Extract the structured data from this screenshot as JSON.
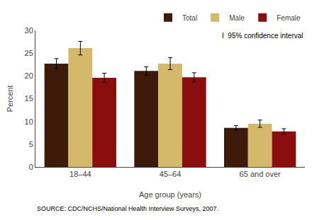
{
  "chart_data": {
    "type": "bar",
    "xlabel": "Age group (years)",
    "ylabel": "Percent",
    "categories": [
      "18–44",
      "45–64",
      "65 and over"
    ],
    "series": [
      {
        "name": "Total",
        "color": "#3d1a0a",
        "values": [
          22.7,
          21.1,
          8.6
        ],
        "errors": [
          1.1,
          0.9,
          0.5
        ]
      },
      {
        "name": "Male",
        "color": "#d4b96a",
        "values": [
          26.1,
          22.7,
          9.5
        ],
        "errors": [
          1.5,
          1.3,
          0.8
        ]
      },
      {
        "name": "Female",
        "color": "#8b0e0e",
        "values": [
          19.6,
          19.7,
          7.8
        ],
        "errors": [
          1.0,
          1.0,
          0.6
        ]
      }
    ],
    "ylim": [
      0,
      30
    ],
    "yticks": [
      0,
      5,
      10,
      15,
      20,
      25,
      30
    ],
    "annotations": [
      "I  95% confidence interval",
      "SOURCE: CDC/NCHS/National Health Interview Surveys, 2007."
    ],
    "legend": "upper right",
    "grid": false
  }
}
